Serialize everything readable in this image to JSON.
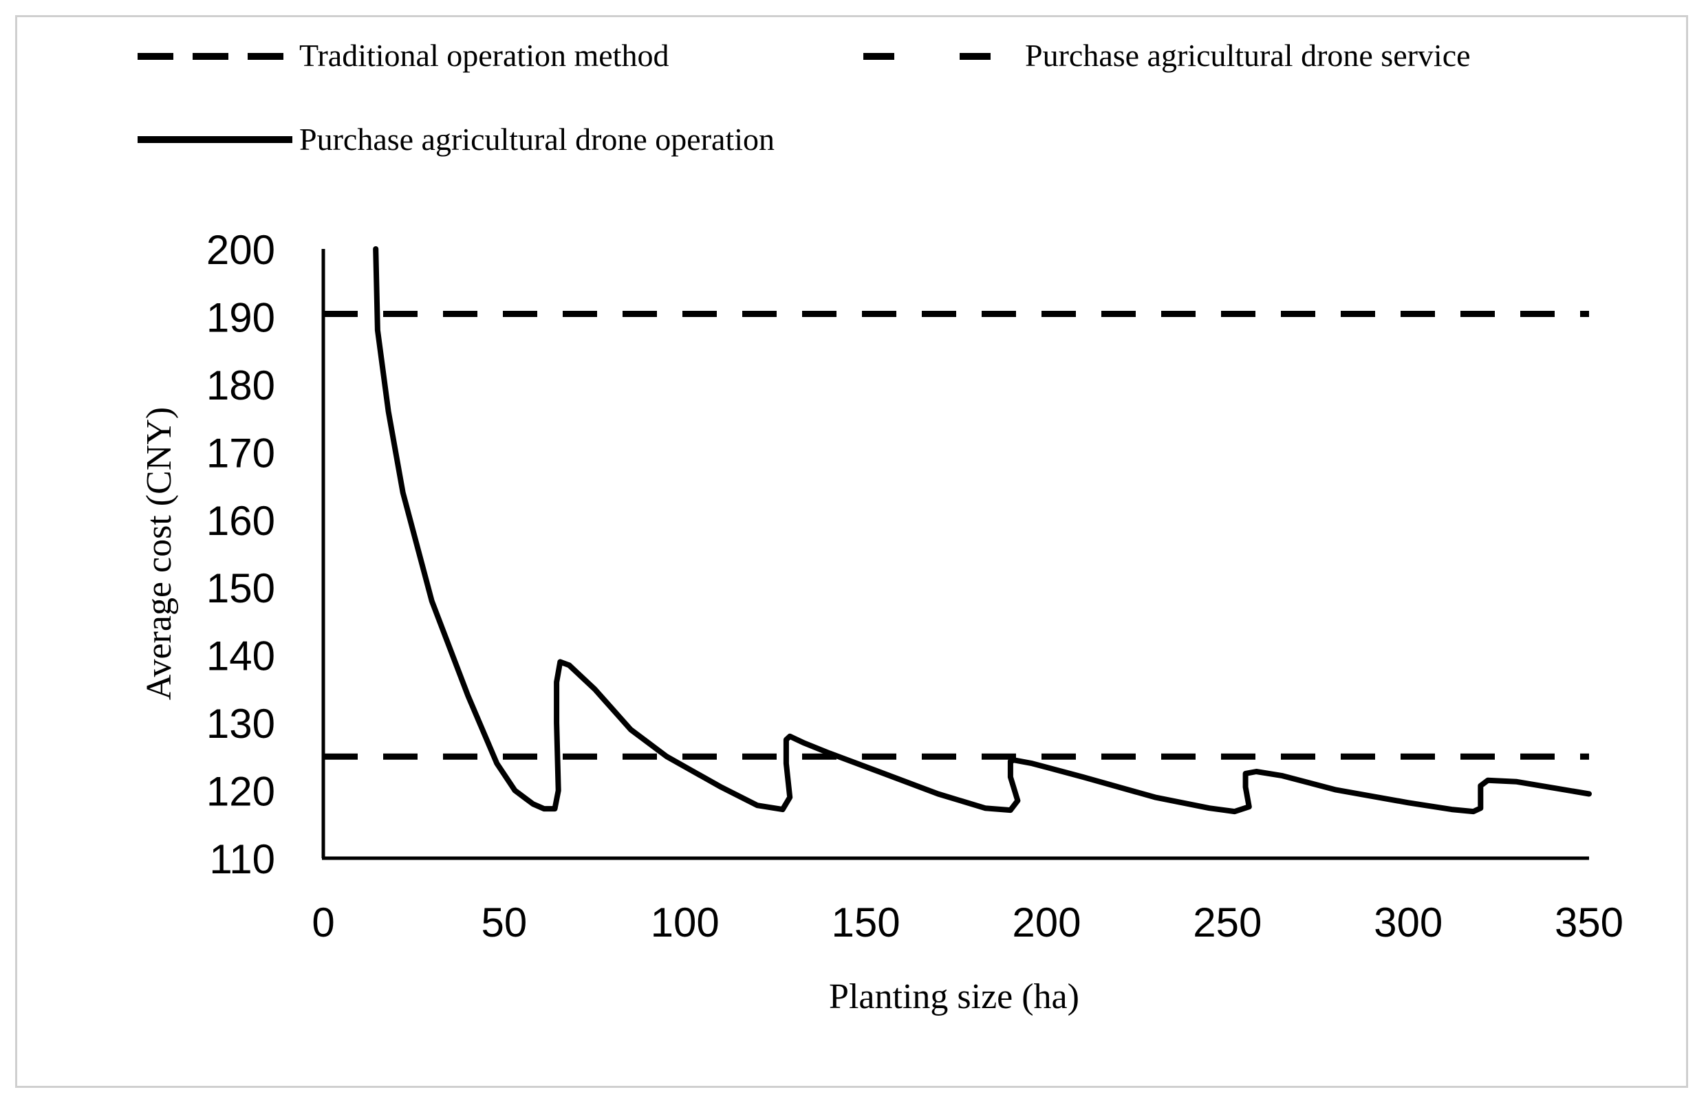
{
  "chart_data": {
    "type": "line",
    "title": "",
    "xlabel": "Planting size (ha)",
    "ylabel": "Average cost (CNY)",
    "xlim": [
      0,
      350
    ],
    "ylim": [
      110,
      200
    ],
    "xticks": [
      0,
      50,
      100,
      150,
      200,
      250,
      300,
      350
    ],
    "yticks": [
      110,
      120,
      130,
      140,
      150,
      160,
      170,
      180,
      190,
      200
    ],
    "legend_position": "top",
    "series": [
      {
        "name": "Traditional operation method",
        "style": "dashed",
        "color": "#000000",
        "x": [
          0,
          350
        ],
        "y": [
          190.4,
          190.4
        ]
      },
      {
        "name": "Purchase agricultural drone service",
        "style": "dashed",
        "color": "#000000",
        "x": [
          0,
          350
        ],
        "y": [
          125,
          125
        ]
      },
      {
        "name": "Purchase agricultural drone operation",
        "style": "solid",
        "color": "#000000",
        "x": [
          14.5,
          15,
          18,
          22,
          30,
          40,
          48,
          53,
          58,
          61,
          64,
          65,
          64.5,
          64.5,
          65.5,
          68,
          75,
          85,
          95,
          110,
          120,
          127,
          129,
          128,
          128,
          129,
          133,
          140,
          155,
          170,
          183,
          190,
          192,
          190,
          190,
          191,
          196,
          210,
          230,
          245,
          252,
          256,
          255,
          255,
          258,
          265,
          280,
          300,
          312,
          318,
          320,
          320,
          322,
          330,
          350
        ],
        "y": [
          200,
          188,
          176,
          164,
          148,
          134,
          124,
          120,
          118,
          117.3,
          117.3,
          120,
          130,
          136,
          139,
          138.5,
          135,
          129,
          125,
          120.5,
          117.8,
          117.2,
          119,
          124,
          127.5,
          128,
          127,
          125.5,
          122.5,
          119.5,
          117.4,
          117.1,
          118.5,
          122,
          124.3,
          124.5,
          124,
          122,
          119,
          117.4,
          116.9,
          117.6,
          120.5,
          122.5,
          122.8,
          122.2,
          120.1,
          118.2,
          117.2,
          116.9,
          117.4,
          120.7,
          121.5,
          121.3,
          119.5
        ]
      }
    ]
  }
}
